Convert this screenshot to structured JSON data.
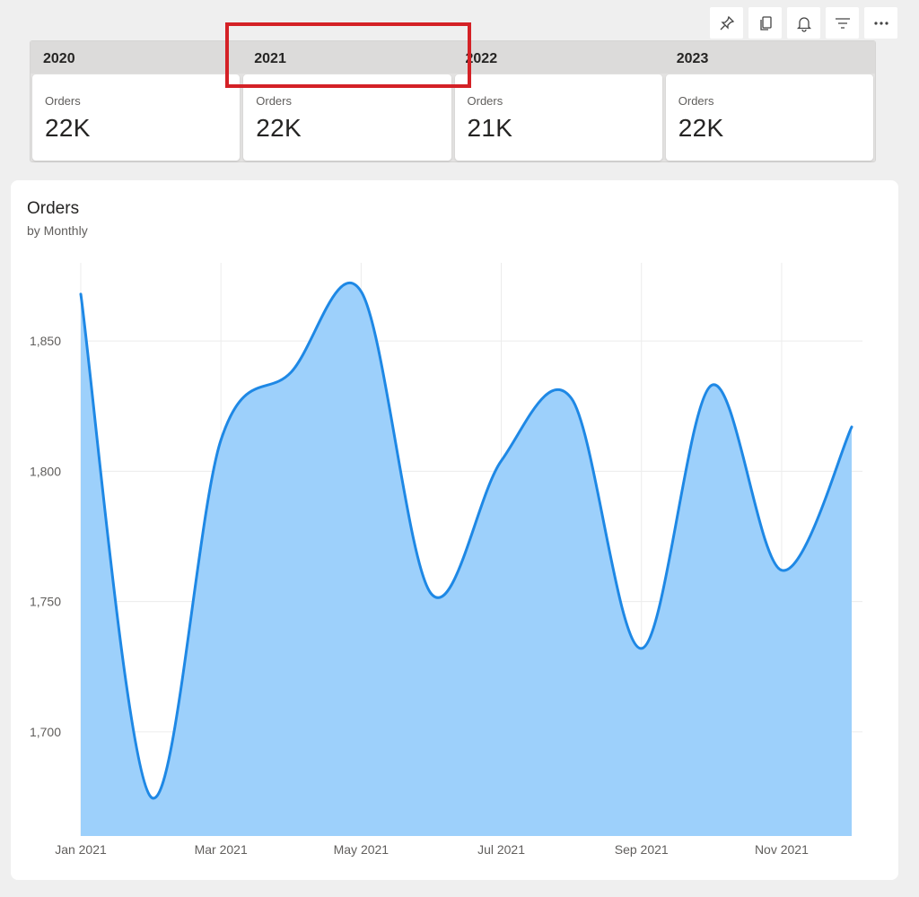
{
  "toolbar": {
    "buttons": [
      {
        "name": "pin-button",
        "icon": "pin-icon"
      },
      {
        "name": "copy-button",
        "icon": "copy-icon"
      },
      {
        "name": "alert-button",
        "icon": "bell-icon"
      },
      {
        "name": "filter-button",
        "icon": "filter-icon"
      },
      {
        "name": "more-options-button",
        "icon": "more-icon"
      }
    ]
  },
  "year_cards": [
    {
      "year": "2020",
      "label": "Orders",
      "value": "22K"
    },
    {
      "year": "2021",
      "label": "Orders",
      "value": "22K"
    },
    {
      "year": "2022",
      "label": "Orders",
      "value": "21K"
    },
    {
      "year": "2023",
      "label": "Orders",
      "value": "22K"
    }
  ],
  "colors": {
    "line": "#1e88e5",
    "fill": "#9dd0fb",
    "grid": "#ececec",
    "highlight": "#d42126"
  },
  "chart_data": {
    "type": "area",
    "title": "Orders",
    "subtitle": "by Monthly",
    "x": [
      "Jan 2021",
      "Feb 2021",
      "Mar 2021",
      "Apr 2021",
      "May 2021",
      "Jun 2021",
      "Jul 2021",
      "Aug 2021",
      "Sep 2021",
      "Oct 2021",
      "Nov 2021",
      "Dec 2021"
    ],
    "x_tick_labels": [
      "Jan 2021",
      "Mar 2021",
      "May 2021",
      "Jul 2021",
      "Sep 2021",
      "Nov 2021"
    ],
    "series": [
      {
        "values": [
          1868,
          1675,
          1812,
          1838,
          1869,
          1753,
          1804,
          1828,
          1732,
          1833,
          1762,
          1817
        ]
      }
    ],
    "y_ticks": [
      1700,
      1750,
      1800,
      1850
    ],
    "y_tick_labels": [
      "1,700",
      "1,750",
      "1,800",
      "1,850"
    ],
    "ylim": [
      1660,
      1880
    ],
    "grid": true,
    "xlabel": "",
    "ylabel": ""
  }
}
